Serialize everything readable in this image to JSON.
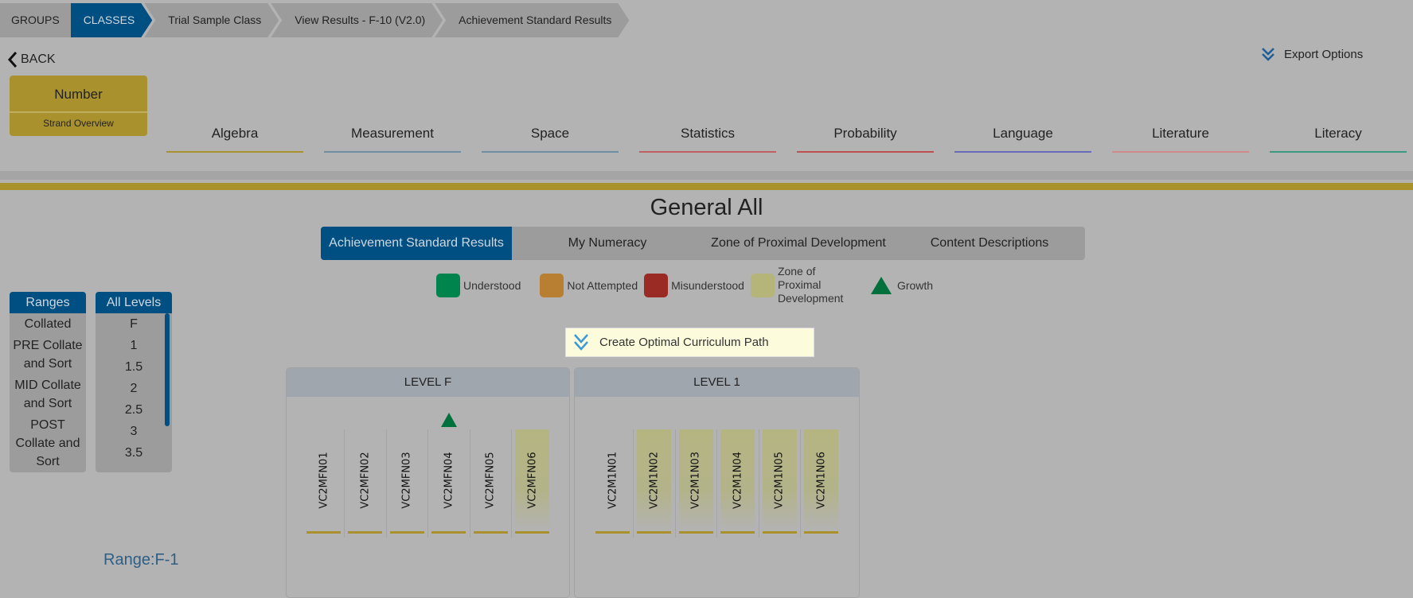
{
  "breadcrumbs": [
    "GROUPS",
    "CLASSES",
    "Trial Sample Class",
    "View Results - F-10 (V2.0)",
    "Achievement Standard Results"
  ],
  "back_label": "BACK",
  "strand": {
    "title": "Number",
    "subtitle": "Strand Overview"
  },
  "export_label": "Export Options",
  "strand_tabs": [
    {
      "label": "Algebra",
      "color": "#a9922e"
    },
    {
      "label": "Measurement",
      "color": "#6f8fa6"
    },
    {
      "label": "Space",
      "color": "#6f8fa6"
    },
    {
      "label": "Statistics",
      "color": "#c06060"
    },
    {
      "label": "Probability",
      "color": "#c05050"
    },
    {
      "label": "Language",
      "color": "#6a6aba"
    },
    {
      "label": "Literature",
      "color": "#d08a8a"
    },
    {
      "label": "Literacy",
      "color": "#3a9a80"
    }
  ],
  "page_title": "General All",
  "view_tabs": [
    "Achievement Standard Results",
    "My Numeracy",
    "Zone of Proximal Development",
    "Content Descriptions"
  ],
  "legend": [
    {
      "label": "Understood",
      "color": "#00844d"
    },
    {
      "label": "Not Attempted",
      "color": "#b87f32"
    },
    {
      "label": "Misunderstood",
      "color": "#9a2a24"
    },
    {
      "label": "Zone of Proximal Development",
      "color": "#b5b57a"
    },
    {
      "label": "Growth",
      "color": "#00713d"
    }
  ],
  "ranges": {
    "header": "Ranges",
    "items": [
      "Collated",
      "PRE Collate and Sort",
      "MID Collate and Sort",
      "POST Collate and Sort"
    ]
  },
  "levels": {
    "header": "All Levels",
    "items": [
      "F",
      "1",
      "1.5",
      "2",
      "2.5",
      "3",
      "3.5"
    ]
  },
  "cocp_label": "Create Optimal Curriculum Path",
  "panels": [
    {
      "title": "LEVEL F",
      "codes": [
        {
          "code": "VC2MFN01",
          "zpd": false,
          "growth": false
        },
        {
          "code": "VC2MFN02",
          "zpd": false,
          "growth": false
        },
        {
          "code": "VC2MFN03",
          "zpd": false,
          "growth": false
        },
        {
          "code": "VC2MFN04",
          "zpd": false,
          "growth": true
        },
        {
          "code": "VC2MFN05",
          "zpd": false,
          "growth": false
        },
        {
          "code": "VC2MFN06",
          "zpd": true,
          "growth": false
        }
      ]
    },
    {
      "title": "LEVEL 1",
      "codes": [
        {
          "code": "VC2M1N01",
          "zpd": false,
          "growth": false
        },
        {
          "code": "VC2M1N02",
          "zpd": true,
          "growth": false
        },
        {
          "code": "VC2M1N03",
          "zpd": true,
          "growth": false
        },
        {
          "code": "VC2M1N04",
          "zpd": true,
          "growth": false
        },
        {
          "code": "VC2M1N05",
          "zpd": true,
          "growth": false
        },
        {
          "code": "VC2M1N06",
          "zpd": true,
          "growth": false
        }
      ]
    }
  ],
  "range_label": "Range:F-1"
}
